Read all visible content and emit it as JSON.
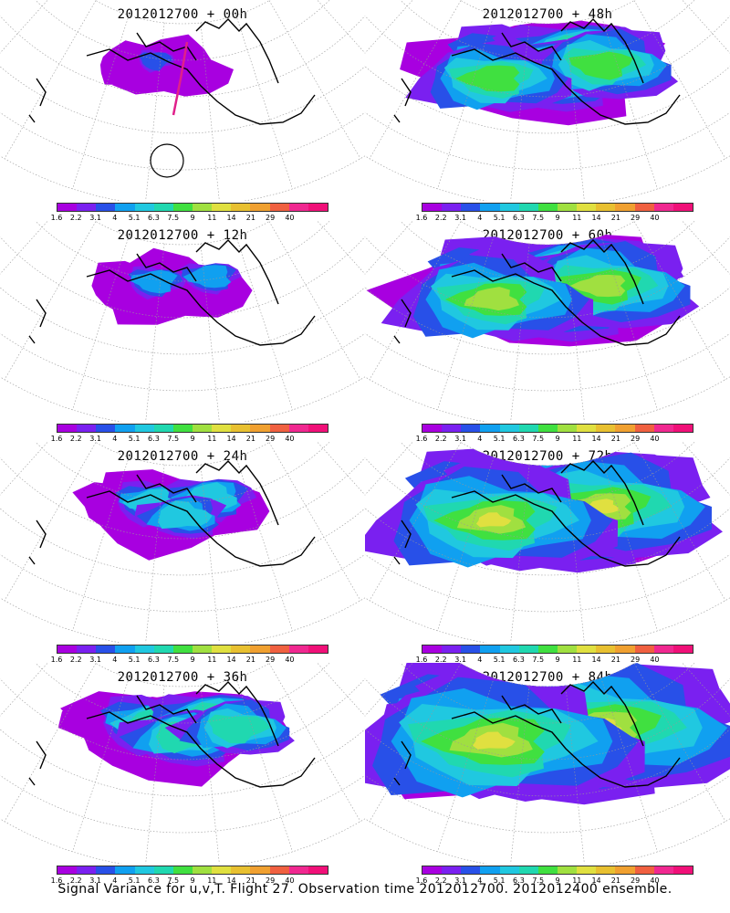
{
  "caption": "Signal Variance for u,v,T. Flight 27. Observation time 2012012700. 2012012400 ensemble.",
  "colorbar": {
    "labels": [
      "1.6",
      "2.2",
      "3.1",
      "4",
      "5.1",
      "6.3",
      "7.5",
      "9",
      "11",
      "14",
      "21",
      "29",
      "40"
    ],
    "colors": [
      "#a800e0",
      "#7a20f0",
      "#2850e8",
      "#10a0f0",
      "#20c8e0",
      "#20d8b0",
      "#40e040",
      "#a0e040",
      "#e0e040",
      "#e8c030",
      "#f0a030",
      "#f06040",
      "#f02890",
      "#f01078"
    ]
  },
  "panels": [
    {
      "title": "2012012700 + 00h",
      "stage": 0,
      "flight_track": true
    },
    {
      "title": "2012012700 + 48h",
      "stage": 4
    },
    {
      "title": "2012012700 + 12h",
      "stage": 1
    },
    {
      "title": "2012012700 + 60h",
      "stage": 5
    },
    {
      "title": "2012012700 + 24h",
      "stage": 2
    },
    {
      "title": "2012012700 + 72h",
      "stage": 6
    },
    {
      "title": "2012012700 + 36h",
      "stage": 3
    },
    {
      "title": "2012012700 + 84h",
      "stage": 7
    }
  ]
}
